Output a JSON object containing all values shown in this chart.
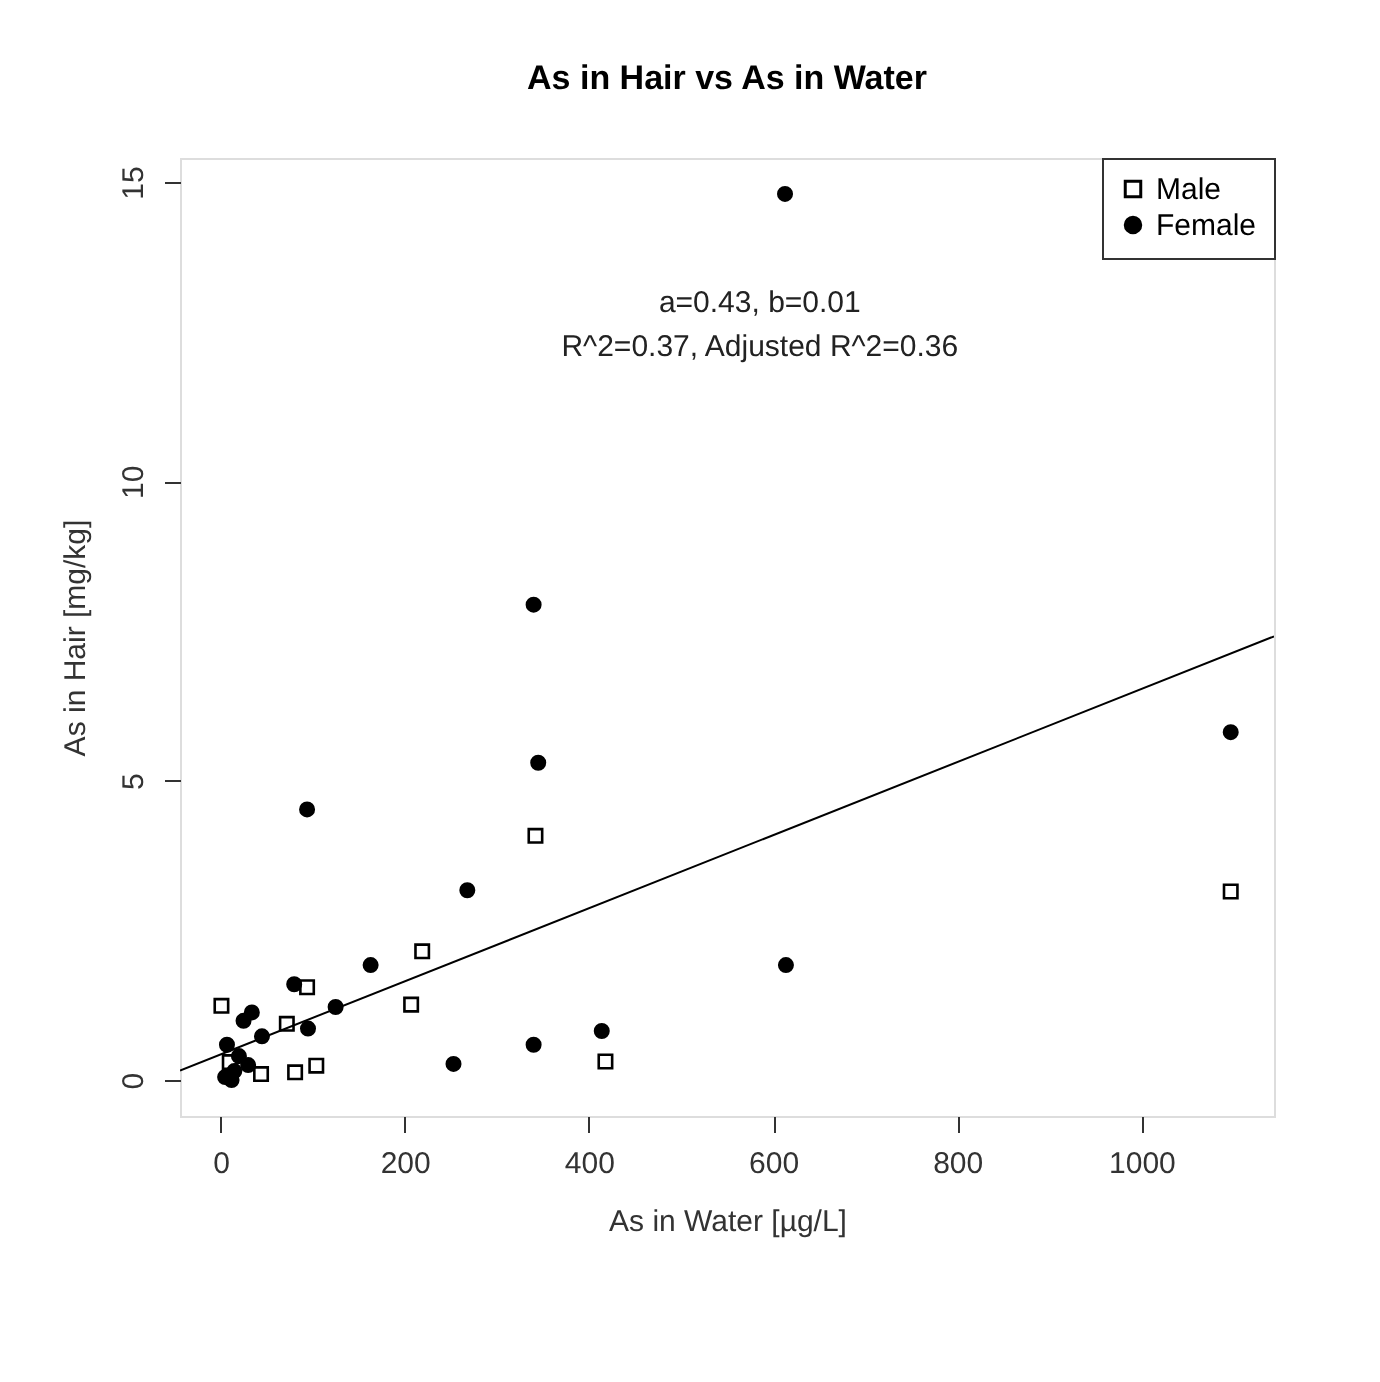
{
  "chart_data": {
    "type": "scatter",
    "title": "As in Hair vs As in Water",
    "xlabel": "As in Water [µg/L]",
    "ylabel": "As in Hair [mg/kg]",
    "xlim": [
      -44,
      1144
    ],
    "ylim": [
      -0.6,
      15.4
    ],
    "xticks": [
      0,
      200,
      400,
      600,
      800,
      1000
    ],
    "yticks": [
      0,
      5,
      10,
      15
    ],
    "grid": false,
    "legend": "top right",
    "annotations": [
      "a=0.43, b=0.01",
      "R^2=0.37, Adjusted R^2=0.36"
    ],
    "series": [
      {
        "name": "Male",
        "color": "#000000",
        "marker": "square",
        "x": [
          342,
          1097,
          219,
          207,
          94,
          1,
          72,
          418,
          104,
          81,
          44,
          10
        ],
        "values": [
          4.08,
          3.15,
          2.15,
          1.26,
          1.55,
          1.24,
          0.94,
          0.31,
          0.24,
          0.13,
          0.1,
          0.3
        ]
      },
      {
        "name": "Female",
        "color": "#000000",
        "marker": "circle",
        "x": [
          613,
          340,
          345,
          1097,
          94,
          268,
          163,
          614,
          80,
          125,
          95,
          414,
          340,
          253,
          34,
          25,
          45,
          7,
          15,
          5,
          20,
          30,
          12
        ],
        "values": [
          14.8,
          7.94,
          5.3,
          5.81,
          4.52,
          3.17,
          1.92,
          1.92,
          1.6,
          1.22,
          0.86,
          0.82,
          0.59,
          0.27,
          1.13,
          0.99,
          0.73,
          0.59,
          0.15,
          0.05,
          0.4,
          0.25,
          0.0
        ]
      },
      {
        "type": "line",
        "color": "#000000",
        "x": [
          -44,
          1144
        ],
        "values": [
          0.16,
          7.41
        ]
      }
    ]
  }
}
